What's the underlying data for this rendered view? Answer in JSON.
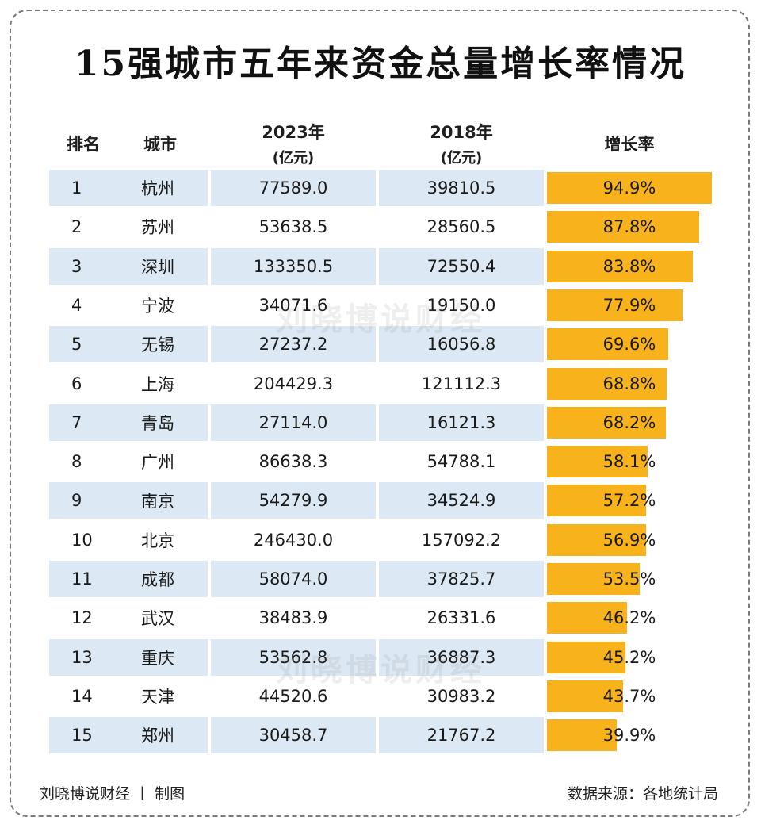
{
  "title": "15强城市五年来资金总量增长率情况",
  "header": {
    "rank": "排名",
    "city": "城市",
    "y2023": "2023年",
    "y2023_unit": "(亿元)",
    "y2018": "2018年",
    "y2018_unit": "(亿元)",
    "rate": "增长率"
  },
  "watermark": "刘晓博说财经",
  "footer": {
    "left": "刘晓博说财经 丨 制图",
    "right": "数据来源：各地统计局"
  },
  "colors": {
    "bar": "#f8b21c",
    "row_shade": "#dce9f4"
  },
  "chart_data": {
    "type": "table",
    "title": "15强城市五年来资金总量增长率情况",
    "columns": [
      "排名",
      "城市",
      "2023年 (亿元)",
      "2018年 (亿元)",
      "增长率"
    ],
    "rows": [
      {
        "rank": "1",
        "city": "杭州",
        "v2023": "77589.0",
        "v2018": "39810.5",
        "rate_label": "94.9%",
        "rate": 94.9
      },
      {
        "rank": "2",
        "city": "苏州",
        "v2023": "53638.5",
        "v2018": "28560.5",
        "rate_label": "87.8%",
        "rate": 87.8
      },
      {
        "rank": "3",
        "city": "深圳",
        "v2023": "133350.5",
        "v2018": "72550.4",
        "rate_label": "83.8%",
        "rate": 83.8
      },
      {
        "rank": "4",
        "city": "宁波",
        "v2023": "34071.6",
        "v2018": "19150.0",
        "rate_label": "77.9%",
        "rate": 77.9
      },
      {
        "rank": "5",
        "city": "无锡",
        "v2023": "27237.2",
        "v2018": "16056.8",
        "rate_label": "69.6%",
        "rate": 69.6
      },
      {
        "rank": "6",
        "city": "上海",
        "v2023": "204429.3",
        "v2018": "121112.3",
        "rate_label": "68.8%",
        "rate": 68.8
      },
      {
        "rank": "7",
        "city": "青岛",
        "v2023": "27114.0",
        "v2018": "16121.3",
        "rate_label": "68.2%",
        "rate": 68.2
      },
      {
        "rank": "8",
        "city": "广州",
        "v2023": "86638.3",
        "v2018": "54788.1",
        "rate_label": "58.1%",
        "rate": 58.1
      },
      {
        "rank": "9",
        "city": "南京",
        "v2023": "54279.9",
        "v2018": "34524.9",
        "rate_label": "57.2%",
        "rate": 57.2
      },
      {
        "rank": "10",
        "city": "北京",
        "v2023": "246430.0",
        "v2018": "157092.2",
        "rate_label": "56.9%",
        "rate": 56.9
      },
      {
        "rank": "11",
        "city": "成都",
        "v2023": "58074.0",
        "v2018": "37825.7",
        "rate_label": "53.5%",
        "rate": 53.5
      },
      {
        "rank": "12",
        "city": "武汉",
        "v2023": "38483.9",
        "v2018": "26331.6",
        "rate_label": "46.2%",
        "rate": 46.2
      },
      {
        "rank": "13",
        "city": "重庆",
        "v2023": "53562.8",
        "v2018": "36887.3",
        "rate_label": "45.2%",
        "rate": 45.2
      },
      {
        "rank": "14",
        "city": "天津",
        "v2023": "44520.6",
        "v2018": "30983.2",
        "rate_label": "43.7%",
        "rate": 43.7
      },
      {
        "rank": "15",
        "city": "郑州",
        "v2023": "30458.7",
        "v2018": "21767.2",
        "rate_label": "39.9%",
        "rate": 39.9
      }
    ],
    "bar_max": 94.9
  }
}
